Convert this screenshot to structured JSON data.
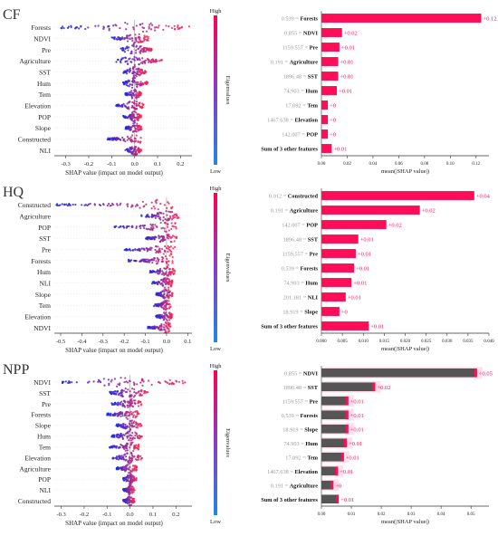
{
  "colors": {
    "high": "#ff0052",
    "low": "#1e88e5",
    "bar": "#ff0d57",
    "bar_dark": "#555555",
    "value_text": "#ff0d57"
  },
  "chart_data": [
    {
      "type": "scatter",
      "panel": "CF",
      "section_title": "CF",
      "xlabel": "SHAP value (impact on model output)",
      "xlim": [
        -0.35,
        0.25
      ],
      "xticks": [
        -0.3,
        -0.2,
        -0.1,
        0.0,
        0.1,
        0.2
      ],
      "colorbar": {
        "label": "Eigenvalues",
        "high": "High",
        "low": "Low"
      },
      "features": [
        {
          "name": "Forests",
          "spread": [
            -0.32,
            0.24
          ]
        },
        {
          "name": "NDVI",
          "spread": [
            -0.1,
            0.06
          ]
        },
        {
          "name": "Pre",
          "spread": [
            -0.06,
            0.08
          ]
        },
        {
          "name": "Agriculture",
          "spread": [
            -0.08,
            0.12
          ]
        },
        {
          "name": "SST",
          "spread": [
            -0.05,
            0.05
          ]
        },
        {
          "name": "Hum",
          "spread": [
            -0.05,
            0.06
          ]
        },
        {
          "name": "Tem",
          "spread": [
            -0.04,
            0.03
          ]
        },
        {
          "name": "Elevation",
          "spread": [
            -0.08,
            0.04
          ]
        },
        {
          "name": "POP",
          "spread": [
            -0.05,
            0.03
          ]
        },
        {
          "name": "Slope",
          "spread": [
            -0.04,
            0.03
          ]
        },
        {
          "name": "Constructed",
          "spread": [
            -0.12,
            0.03
          ]
        },
        {
          "name": "NLI",
          "spread": [
            -0.04,
            0.03
          ]
        }
      ]
    },
    {
      "type": "bar",
      "panel": "CF",
      "xlabel": "mean(|SHAP value|)",
      "xlim": [
        0,
        0.13
      ],
      "xticks": [
        0.0,
        0.02,
        0.04,
        0.06,
        0.08,
        0.1,
        0.12
      ],
      "xtick_labels": [
        "0.00",
        "0.02",
        "0.04",
        "0.06",
        "0.08",
        "0.10",
        "0.12"
      ],
      "bars": [
        {
          "feature_value": "0.539",
          "name": "Forests",
          "value": 0.124,
          "label": "+0.12"
        },
        {
          "feature_value": "0.855",
          "name": "NDVI",
          "value": 0.016,
          "label": "+0.02"
        },
        {
          "feature_value": "1159.557",
          "name": "Pre",
          "value": 0.014,
          "label": "+0.01"
        },
        {
          "feature_value": "0.191",
          "name": "Agriculture",
          "value": 0.013,
          "label": "+0.01"
        },
        {
          "feature_value": "1896.48",
          "name": "SST",
          "value": 0.013,
          "label": "+0.01"
        },
        {
          "feature_value": "74.903",
          "name": "Hum",
          "value": 0.012,
          "label": "+0.01"
        },
        {
          "feature_value": "17.092",
          "name": "Tem",
          "value": 0.005,
          "label": "+0"
        },
        {
          "feature_value": "1467.638",
          "name": "Elevation",
          "value": 0.005,
          "label": "+0"
        },
        {
          "feature_value": "142.007",
          "name": "POP",
          "value": 0.005,
          "label": "+0"
        },
        {
          "feature_value": "",
          "name": "Sum of 3 other features",
          "value": 0.008,
          "label": "+0.01"
        }
      ]
    },
    {
      "type": "scatter",
      "panel": "HQ",
      "section_title": "HQ",
      "xlabel": "SHAP value (impact on model output)",
      "xlim": [
        -0.53,
        0.12
      ],
      "xticks": [
        -0.5,
        -0.4,
        -0.3,
        -0.2,
        -0.1,
        0.0,
        0.1
      ],
      "colorbar": {
        "label": "Eigenvalues",
        "high": "High",
        "low": "Low"
      },
      "features": [
        {
          "name": "Constructed",
          "spread": [
            -0.52,
            0.03
          ]
        },
        {
          "name": "Agriculture",
          "spread": [
            -0.12,
            0.06
          ]
        },
        {
          "name": "POP",
          "spread": [
            -0.25,
            0.05
          ]
        },
        {
          "name": "SST",
          "spread": [
            -0.1,
            0.05
          ]
        },
        {
          "name": "Pre",
          "spread": [
            -0.2,
            0.04
          ]
        },
        {
          "name": "Forests",
          "spread": [
            -0.18,
            0.03
          ]
        },
        {
          "name": "Hum",
          "spread": [
            -0.08,
            0.04
          ]
        },
        {
          "name": "NLI",
          "spread": [
            -0.07,
            0.03
          ]
        },
        {
          "name": "Slope",
          "spread": [
            -0.05,
            0.03
          ]
        },
        {
          "name": "Tem",
          "spread": [
            -0.06,
            0.02
          ]
        },
        {
          "name": "Elevation",
          "spread": [
            -0.05,
            0.03
          ]
        },
        {
          "name": "NDVI",
          "spread": [
            -0.09,
            0.02
          ]
        }
      ]
    },
    {
      "type": "bar",
      "panel": "HQ",
      "xlabel": "mean(|SHAP value|)",
      "xlim": [
        0,
        0.04
      ],
      "xticks": [
        0.0,
        0.005,
        0.01,
        0.015,
        0.02,
        0.025,
        0.03,
        0.035,
        0.04
      ],
      "xtick_labels": [
        "0.000",
        "0.005",
        "0.010",
        "0.015",
        "0.020",
        "0.025",
        "0.030",
        "0.035",
        "0.040"
      ],
      "bars": [
        {
          "feature_value": "0.012",
          "name": "Constructed",
          "value": 0.0365,
          "label": "+0.04"
        },
        {
          "feature_value": "0.191",
          "name": "Agriculture",
          "value": 0.0235,
          "label": "+0.02"
        },
        {
          "feature_value": "142.007",
          "name": "POP",
          "value": 0.0155,
          "label": "+0.02"
        },
        {
          "feature_value": "1896.48",
          "name": "SST",
          "value": 0.0088,
          "label": "+0.01"
        },
        {
          "feature_value": "1159.557",
          "name": "Pre",
          "value": 0.0082,
          "label": "+0.01"
        },
        {
          "feature_value": "0.539",
          "name": "Forests",
          "value": 0.0078,
          "label": "+0.01"
        },
        {
          "feature_value": "74.903",
          "name": "Hum",
          "value": 0.0072,
          "label": "+0.01"
        },
        {
          "feature_value": "201.181",
          "name": "NLI",
          "value": 0.0058,
          "label": "+0.01"
        },
        {
          "feature_value": "18.919",
          "name": "Slope",
          "value": 0.0043,
          "label": "+0"
        },
        {
          "feature_value": "",
          "name": "Sum of 3 other features",
          "value": 0.0113,
          "label": "+0.01"
        }
      ]
    },
    {
      "type": "scatter",
      "panel": "NPP",
      "section_title": "NPP",
      "xlabel": "SHAP value (impact on model output)",
      "xlim": [
        -0.33,
        0.27
      ],
      "xticks": [
        -0.3,
        -0.2,
        -0.1,
        0.0,
        0.1,
        0.2
      ],
      "colorbar": {
        "label": "Eigenvalues",
        "high": "High",
        "low": "Low"
      },
      "features": [
        {
          "name": "NDVI",
          "spread": [
            -0.3,
            0.24
          ]
        },
        {
          "name": "SST",
          "spread": [
            -0.1,
            0.08
          ]
        },
        {
          "name": "Pre",
          "spread": [
            -0.08,
            0.05
          ]
        },
        {
          "name": "Forests",
          "spread": [
            -0.1,
            0.04
          ]
        },
        {
          "name": "Slope",
          "spread": [
            -0.06,
            0.05
          ]
        },
        {
          "name": "Hum",
          "spread": [
            -0.08,
            0.06
          ]
        },
        {
          "name": "Tem",
          "spread": [
            -0.09,
            0.04
          ]
        },
        {
          "name": "Elevation",
          "spread": [
            -0.08,
            0.06
          ]
        },
        {
          "name": "Agriculture",
          "spread": [
            -0.06,
            0.03
          ]
        },
        {
          "name": "POP",
          "spread": [
            -0.03,
            0.03
          ]
        },
        {
          "name": "NLI",
          "spread": [
            -0.03,
            0.02
          ]
        },
        {
          "name": "Constructed",
          "spread": [
            -0.03,
            0.02
          ]
        }
      ]
    },
    {
      "type": "bar",
      "panel": "NPP",
      "xlabel": "mean(|SHAP value|)",
      "xlim": [
        0,
        0.056
      ],
      "xticks": [
        0.0,
        0.01,
        0.02,
        0.03,
        0.04,
        0.05
      ],
      "xtick_labels": [
        "0.00",
        "0.01",
        "0.02",
        "0.03",
        "0.04",
        "0.05"
      ],
      "bars": [
        {
          "feature_value": "0.855",
          "name": "NDVI",
          "value": 0.052,
          "label": "+0.05"
        },
        {
          "feature_value": "1896.48",
          "name": "SST",
          "value": 0.018,
          "label": "+0.02"
        },
        {
          "feature_value": "1159.557",
          "name": "Pre",
          "value": 0.009,
          "label": "+0.01"
        },
        {
          "feature_value": "0.539",
          "name": "Forests",
          "value": 0.009,
          "label": "+0.01"
        },
        {
          "feature_value": "18.919",
          "name": "Slope",
          "value": 0.009,
          "label": "+0.01"
        },
        {
          "feature_value": "74.903",
          "name": "Hum",
          "value": 0.0085,
          "label": "+0.01"
        },
        {
          "feature_value": "17.092",
          "name": "Tem",
          "value": 0.0075,
          "label": "+0.01"
        },
        {
          "feature_value": "1467.638",
          "name": "Elevation",
          "value": 0.0055,
          "label": "+0.01"
        },
        {
          "feature_value": "0.191",
          "name": "Agriculture",
          "value": 0.004,
          "label": "+0"
        },
        {
          "feature_value": "",
          "name": "Sum of 3 other features",
          "value": 0.0058,
          "label": "+0.01"
        }
      ]
    }
  ]
}
